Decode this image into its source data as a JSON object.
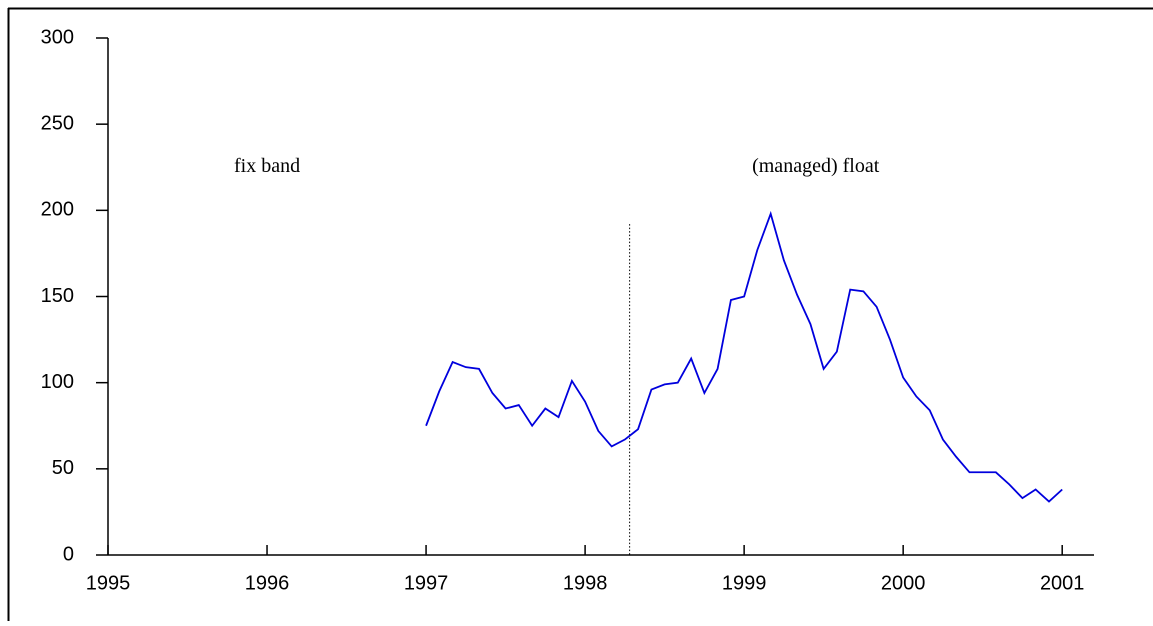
{
  "chart_data": {
    "type": "line",
    "annotations": [
      {
        "text": "fix band",
        "x": 1996.0,
        "y": 225
      },
      {
        "text": "(managed) float",
        "x": 1999.45,
        "y": 225
      }
    ],
    "reference_line": {
      "x": 1998.28,
      "ymax": 192
    },
    "xlim": [
      1995,
      2001.2
    ],
    "xticks": [
      1995,
      1996,
      1997,
      1998,
      1999,
      2000,
      2001
    ],
    "ylim": [
      0,
      300
    ],
    "yticks": [
      0,
      50,
      100,
      150,
      200,
      250,
      300
    ],
    "series": [
      {
        "color": "#0000dd",
        "x": [
          1997.0,
          1997.083,
          1997.167,
          1997.25,
          1997.333,
          1997.417,
          1997.5,
          1997.583,
          1997.667,
          1997.75,
          1997.833,
          1997.917,
          1998.0,
          1998.083,
          1998.167,
          1998.25,
          1998.333,
          1998.417,
          1998.5,
          1998.583,
          1998.667,
          1998.75,
          1998.833,
          1998.917,
          1999.0,
          1999.083,
          1999.167,
          1999.25,
          1999.333,
          1999.417,
          1999.5,
          1999.583,
          1999.667,
          1999.75,
          1999.833,
          1999.917,
          2000.0,
          2000.083,
          2000.167,
          2000.25,
          2000.333,
          2000.417,
          2000.5,
          2000.583,
          2000.667,
          2000.75,
          2000.833,
          2000.917,
          2001.0
        ],
        "values": [
          75,
          95,
          112,
          109,
          108,
          94,
          85,
          87,
          75,
          85,
          80,
          101,
          89,
          72,
          63,
          67,
          73,
          96,
          99,
          100,
          114,
          94,
          108,
          148,
          150,
          177,
          198,
          171,
          151,
          134,
          108,
          118,
          154,
          153,
          144,
          125,
          103,
          92,
          84,
          67,
          57,
          48,
          48,
          48,
          41,
          33,
          38,
          31,
          38
        ]
      }
    ]
  }
}
